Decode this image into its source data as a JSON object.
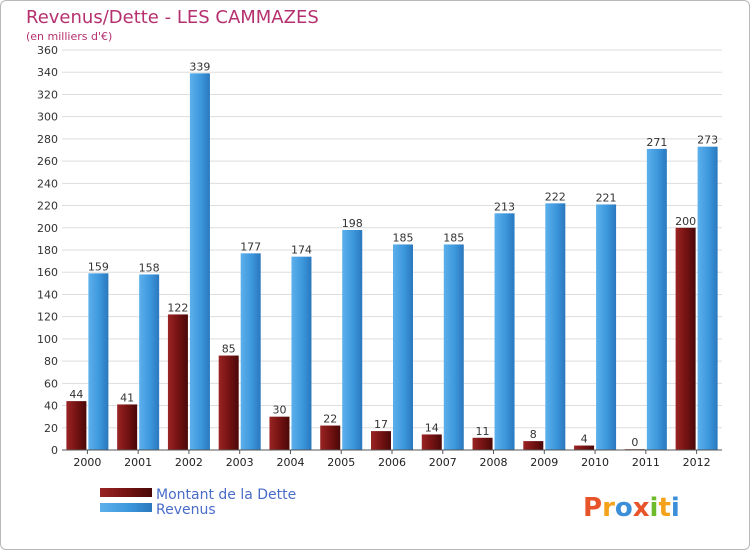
{
  "chart_data": {
    "type": "bar",
    "title": "Revenus/Dette - LES CAMMAZES",
    "subtitle": "(en milliers d'€)",
    "categories": [
      "2000",
      "2001",
      "2002",
      "2003",
      "2004",
      "2005",
      "2006",
      "2007",
      "2008",
      "2009",
      "2010",
      "2011",
      "2012"
    ],
    "series": [
      {
        "name": "Montant de la Dette",
        "color": "#7a1414",
        "values": [
          44,
          41,
          122,
          85,
          30,
          22,
          17,
          14,
          11,
          8,
          4,
          0,
          200
        ]
      },
      {
        "name": "Revenus",
        "color": "#3d97dc",
        "values": [
          159,
          158,
          339,
          177,
          174,
          198,
          185,
          185,
          213,
          222,
          221,
          271,
          273
        ]
      }
    ],
    "ylim": [
      0,
      360
    ],
    "yticks": [
      0,
      20,
      40,
      60,
      80,
      100,
      120,
      140,
      160,
      180,
      200,
      220,
      240,
      260,
      280,
      300,
      320,
      340,
      360
    ],
    "grid": true,
    "legend_position": "bottom-left"
  },
  "logo": {
    "letters": [
      "P",
      "r",
      "o",
      "x",
      "i",
      "t",
      "i"
    ],
    "colors": [
      "#e8542a",
      "#f5a21b",
      "#3b8fd8",
      "#e8542a",
      "#6dbb2b",
      "#f5a21b",
      "#3b8fd8"
    ]
  }
}
